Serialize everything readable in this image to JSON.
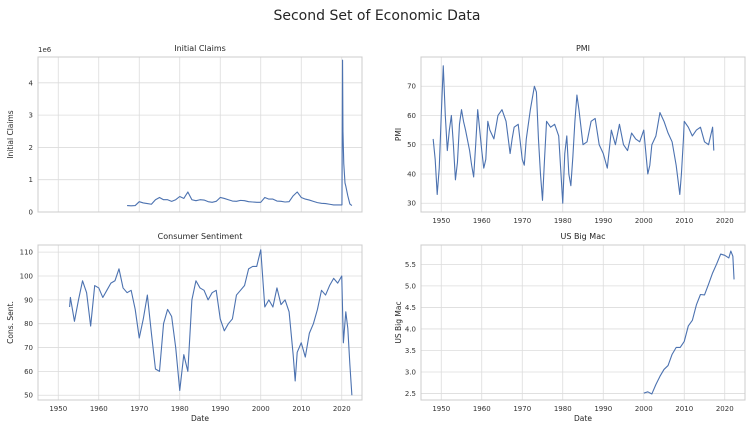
{
  "figure": {
    "title": "Second Set of Economic Data",
    "line_color": "#4c72b0",
    "grid_color": "#dcdcdc"
  },
  "chart_data": [
    {
      "type": "line",
      "title": "Initial Claims",
      "xlabel": "",
      "ylabel": "Initial Claims",
      "offset_text": "1e6",
      "xlim": [
        1945,
        2025
      ],
      "ylim": [
        0,
        4.8
      ],
      "xticks": [
        1950,
        1960,
        1970,
        1980,
        1990,
        2000,
        2010,
        2020
      ],
      "yticks": [
        0,
        1,
        2,
        3,
        4
      ],
      "show_xtick_labels": false,
      "x": [
        1967,
        1968,
        1969,
        1970,
        1971,
        1972,
        1973,
        1974,
        1975,
        1976,
        1977,
        1978,
        1979,
        1980,
        1981,
        1982,
        1983,
        1984,
        1985,
        1986,
        1987,
        1988,
        1989,
        1990,
        1991,
        1992,
        1993,
        1994,
        1995,
        1996,
        1997,
        1998,
        1999,
        2000,
        2001,
        2002,
        2003,
        2004,
        2005,
        2006,
        2007,
        2008,
        2009,
        2010,
        2011,
        2012,
        2013,
        2014,
        2015,
        2016,
        2017,
        2018,
        2019,
        2020.05,
        2020.2,
        2020.3,
        2020.5,
        2020.8,
        2021,
        2021.5,
        2022,
        2022.5
      ],
      "values": [
        0.2,
        0.19,
        0.2,
        0.32,
        0.28,
        0.26,
        0.24,
        0.38,
        0.45,
        0.38,
        0.38,
        0.33,
        0.38,
        0.48,
        0.42,
        0.62,
        0.38,
        0.35,
        0.38,
        0.37,
        0.32,
        0.3,
        0.33,
        0.45,
        0.42,
        0.38,
        0.34,
        0.33,
        0.36,
        0.35,
        0.32,
        0.31,
        0.3,
        0.3,
        0.45,
        0.4,
        0.4,
        0.34,
        0.33,
        0.31,
        0.32,
        0.5,
        0.62,
        0.45,
        0.4,
        0.37,
        0.33,
        0.29,
        0.27,
        0.26,
        0.24,
        0.22,
        0.22,
        0.22,
        4.7,
        2.5,
        1.5,
        0.9,
        0.8,
        0.5,
        0.25,
        0.2
      ]
    },
    {
      "type": "line",
      "title": "PMI",
      "xlabel": "",
      "ylabel": "PMI",
      "xlim": [
        1945,
        2025
      ],
      "ylim": [
        27,
        80
      ],
      "xticks": [
        1950,
        1960,
        1970,
        1980,
        1990,
        2000,
        2010,
        2020
      ],
      "yticks": [
        30,
        40,
        50,
        60,
        70
      ],
      "show_xtick_labels": true,
      "x": [
        1948,
        1948.5,
        1949,
        1949.5,
        1950,
        1950.5,
        1951,
        1951.5,
        1952,
        1952.5,
        1953,
        1953.5,
        1954,
        1954.5,
        1955,
        1955.5,
        1956,
        1957,
        1957.5,
        1958,
        1958.5,
        1959,
        1960,
        1960.5,
        1961,
        1961.5,
        1962,
        1963,
        1964,
        1965,
        1966,
        1967,
        1967.5,
        1968,
        1969,
        1970,
        1970.5,
        1971,
        1972,
        1973,
        1973.5,
        1974,
        1974.5,
        1975,
        1975.5,
        1976,
        1977,
        1978,
        1979,
        1980,
        1980.5,
        1981,
        1981.5,
        1982,
        1982.5,
        1983,
        1983.5,
        1984,
        1985,
        1986,
        1987,
        1988,
        1989,
        1990,
        1991,
        1992,
        1993,
        1994,
        1995,
        1996,
        1997,
        1998,
        1999,
        2000,
        2001,
        2001.5,
        2002,
        2003,
        2004,
        2005,
        2006,
        2007,
        2008,
        2008.9,
        2009.3,
        2009.8,
        2010,
        2011,
        2012,
        2013,
        2014,
        2015,
        2016,
        2017,
        2017.3
      ],
      "values": [
        52,
        45,
        33,
        42,
        60,
        77,
        60,
        48,
        55,
        60,
        50,
        38,
        44,
        57,
        62,
        58,
        55,
        48,
        43,
        39,
        50,
        62,
        48,
        42,
        45,
        58,
        55,
        52,
        60,
        62,
        58,
        47,
        52,
        56,
        57,
        45,
        43,
        52,
        62,
        70,
        68,
        52,
        40,
        31,
        45,
        58,
        56,
        57,
        53,
        30,
        47,
        53,
        40,
        36,
        46,
        58,
        67,
        62,
        50,
        51,
        58,
        59,
        50,
        47,
        42,
        55,
        50,
        57,
        50,
        48,
        54,
        52,
        51,
        55,
        40,
        43,
        50,
        53,
        61,
        58,
        54,
        51,
        43,
        33,
        40,
        52,
        58,
        56,
        53,
        55,
        56,
        51,
        50,
        56,
        48
      ]
    },
    {
      "type": "line",
      "title": "Consumer Sentiment",
      "xlabel": "Date",
      "ylabel": "Cons. Sent.",
      "xlim": [
        1945,
        2025
      ],
      "ylim": [
        48,
        113
      ],
      "xticks": [
        1950,
        1960,
        1970,
        1980,
        1990,
        2000,
        2010,
        2020
      ],
      "yticks": [
        50,
        60,
        70,
        80,
        90,
        100,
        110
      ],
      "show_xtick_labels": true,
      "x": [
        1952.8,
        1953,
        1953.5,
        1954,
        1955,
        1956,
        1957,
        1958,
        1959,
        1960,
        1961,
        1962,
        1963,
        1964,
        1965,
        1966,
        1967,
        1968,
        1969,
        1970,
        1971,
        1972,
        1973,
        1974,
        1975,
        1976,
        1977,
        1978,
        1979,
        1980,
        1981,
        1982,
        1983,
        1984,
        1985,
        1986,
        1987,
        1988,
        1989,
        1990,
        1991,
        1992,
        1993,
        1994,
        1995,
        1996,
        1997,
        1998,
        1999,
        2000,
        2001,
        2002,
        2003,
        2004,
        2005,
        2006,
        2007,
        2008,
        2008.5,
        2009,
        2010,
        2011,
        2012,
        2013,
        2014,
        2015,
        2016,
        2017,
        2018,
        2019,
        2020,
        2020.4,
        2021,
        2021.5,
        2022,
        2022.5
      ],
      "values": [
        87,
        91,
        86,
        81,
        90,
        98,
        93,
        79,
        96,
        95,
        91,
        94,
        97,
        98,
        103,
        95,
        93,
        94,
        86,
        74,
        82,
        92,
        76,
        61,
        60,
        80,
        86,
        83,
        70,
        52,
        67,
        60,
        90,
        98,
        95,
        94,
        90,
        93,
        94,
        82,
        77,
        80,
        82,
        92,
        94,
        96,
        103,
        104,
        104,
        111,
        87,
        90,
        87,
        95,
        88,
        90,
        85,
        67,
        56,
        68,
        72,
        66,
        76,
        80,
        86,
        94,
        92,
        96,
        99,
        97,
        100,
        72,
        85,
        78,
        63,
        50
      ]
    },
    {
      "type": "line",
      "title": "US Big Mac",
      "xlabel": "Date",
      "ylabel": "US Big Mac",
      "xlim": [
        1945,
        2025
      ],
      "ylim": [
        2.35,
        5.95
      ],
      "xticks": [
        1950,
        1960,
        1970,
        1980,
        1990,
        2000,
        2010,
        2020
      ],
      "yticks": [
        2.5,
        3.0,
        3.5,
        4.0,
        4.5,
        5.0,
        5.5
      ],
      "show_xtick_labels": true,
      "x": [
        2000,
        2001,
        2002,
        2003,
        2004,
        2005,
        2006,
        2007,
        2008,
        2009,
        2010,
        2011,
        2012,
        2013,
        2014,
        2015,
        2016,
        2017,
        2018,
        2019,
        2020,
        2021,
        2021.5,
        2022,
        2022.3
      ],
      "values": [
        2.51,
        2.54,
        2.49,
        2.71,
        2.9,
        3.06,
        3.15,
        3.41,
        3.57,
        3.57,
        3.71,
        4.07,
        4.2,
        4.56,
        4.8,
        4.79,
        5.04,
        5.3,
        5.51,
        5.74,
        5.71,
        5.65,
        5.81,
        5.69,
        5.15
      ]
    }
  ]
}
